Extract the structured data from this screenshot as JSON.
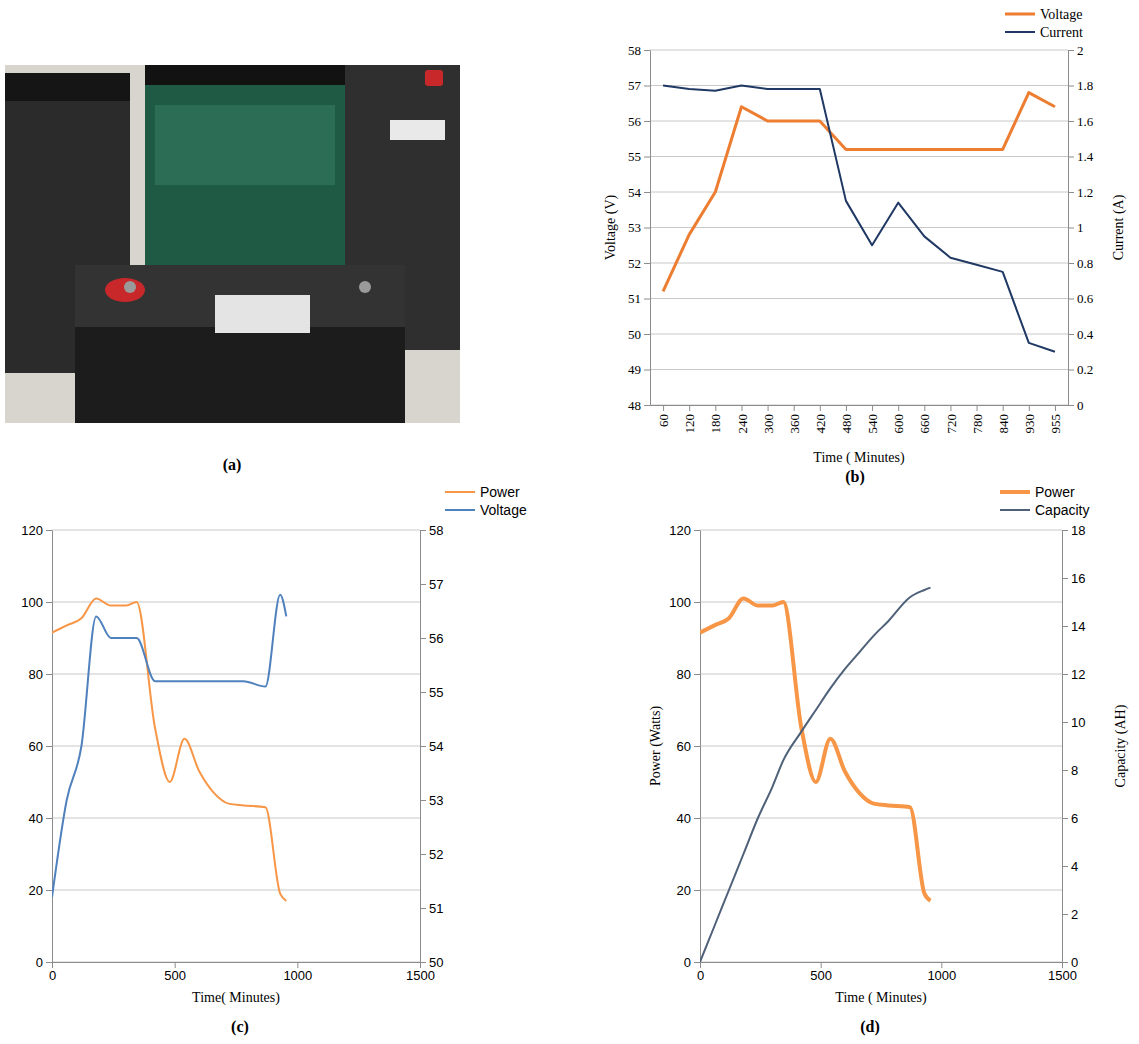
{
  "photo": {
    "label": "(a)"
  },
  "chart_data": [
    {
      "type": "line",
      "label": "(b)",
      "xlabel": "Time ( Minutes)",
      "ylabel": "Voltage (V)",
      "y2label": "Current (A)",
      "categories": [
        "60",
        "120",
        "180",
        "240",
        "300",
        "360",
        "420",
        "480",
        "540",
        "600",
        "660",
        "720",
        "780",
        "840",
        "930",
        "955"
      ],
      "series": [
        {
          "name": "Voltage",
          "color": "#ED7D31",
          "values": [
            51.2,
            52.8,
            54,
            56.4,
            56,
            56,
            56,
            55.2,
            55.2,
            55.2,
            55.2,
            55.2,
            55.2,
            55.2,
            56.8,
            56.4
          ]
        },
        {
          "name": "Current",
          "color": "#1F3864",
          "axis": "y2",
          "values": [
            1.8,
            1.78,
            1.77,
            1.8,
            1.78,
            1.78,
            1.78,
            1.15,
            0.9,
            1.14,
            0.95,
            0.83,
            0.79,
            0.75,
            0.35,
            0.3
          ]
        }
      ],
      "ylim": [
        48,
        58
      ],
      "yticks": [
        48,
        49,
        50,
        51,
        52,
        53,
        54,
        55,
        56,
        57,
        58
      ],
      "y2lim": [
        0,
        2
      ],
      "y2ticks": [
        0,
        0.2,
        0.4,
        0.6,
        0.8,
        1,
        1.2,
        1.4,
        1.6,
        1.8,
        2
      ],
      "grid": true,
      "legend": "top-right"
    },
    {
      "type": "line",
      "label": "(c)",
      "xlabel": "Time( Minutes)",
      "x": [
        0,
        60,
        120,
        180,
        240,
        300,
        345,
        420,
        480,
        540,
        600,
        660,
        720,
        780,
        870,
        930,
        955
      ],
      "series": [
        {
          "name": "Power",
          "color": "#F79646",
          "values": [
            91.5,
            93.5,
            95.5,
            101,
            99,
            99,
            100,
            65,
            50,
            62,
            53,
            47,
            44,
            43.5,
            43,
            19,
            17
          ]
        },
        {
          "name": "Voltage",
          "color": "#4F81BD",
          "axis": "y2",
          "values": [
            51.2,
            53,
            54,
            56.4,
            56,
            56,
            56,
            55.2,
            55.2,
            55.2,
            55.2,
            55.2,
            55.2,
            55.2,
            55.1,
            56.8,
            56.4
          ]
        }
      ],
      "xlim": [
        0,
        1500
      ],
      "xticks": [
        0,
        500,
        1000,
        1500
      ],
      "ylim": [
        0,
        120
      ],
      "yticks": [
        0,
        20,
        40,
        60,
        80,
        100,
        120
      ],
      "y2lim": [
        50,
        58
      ],
      "y2ticks": [
        50,
        51,
        52,
        53,
        54,
        55,
        56,
        57,
        58
      ],
      "grid": true,
      "legend": "top-right"
    },
    {
      "type": "line",
      "label": "(d)",
      "xlabel": "Time ( Minutes)",
      "ylabel": "Power (Watts)",
      "y2label": "Capacity (AH)",
      "x": [
        0,
        60,
        120,
        180,
        240,
        300,
        345,
        420,
        480,
        540,
        600,
        660,
        720,
        780,
        870,
        930,
        955
      ],
      "series": [
        {
          "name": "Power",
          "color": "#F79646",
          "values": [
            91.5,
            93.5,
            95.5,
            101,
            99,
            99,
            100,
            65,
            50,
            62,
            53,
            47,
            44,
            43.5,
            43,
            19,
            17
          ]
        },
        {
          "name": "Capacity",
          "color": "#4F6179",
          "axis": "y2",
          "values": [
            0,
            1.5,
            3,
            4.5,
            6,
            7.3,
            8.4,
            9.6,
            10.5,
            11.4,
            12.2,
            12.9,
            13.6,
            14.2,
            15.2,
            15.5,
            15.6
          ]
        }
      ],
      "xlim": [
        0,
        1500
      ],
      "xticks": [
        0,
        500,
        1000,
        1500
      ],
      "ylim": [
        0,
        120
      ],
      "yticks": [
        0,
        20,
        40,
        60,
        80,
        100,
        120
      ],
      "y2lim": [
        0,
        18
      ],
      "y2ticks": [
        0,
        2,
        4,
        6,
        8,
        10,
        12,
        14,
        16,
        18
      ],
      "grid": true,
      "legend": "top-right"
    }
  ]
}
